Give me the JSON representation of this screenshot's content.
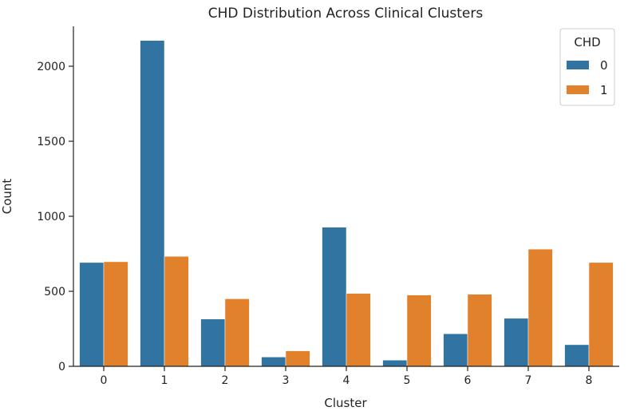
{
  "chart_data": {
    "type": "bar",
    "title": "CHD Distribution Across Clinical Clusters",
    "xlabel": "Cluster",
    "ylabel": "Count",
    "categories": [
      "0",
      "1",
      "2",
      "3",
      "4",
      "5",
      "6",
      "7",
      "8"
    ],
    "series": [
      {
        "name": "0",
        "color": "#3274a1",
        "values": [
          692,
          2172,
          315,
          62,
          927,
          41,
          217,
          320,
          144
        ]
      },
      {
        "name": "1",
        "color": "#e1812c",
        "values": [
          697,
          733,
          450,
          103,
          486,
          475,
          480,
          781,
          692
        ]
      }
    ],
    "ylim": [
      0,
      2280
    ],
    "yticks": [
      0,
      500,
      1000,
      1500,
      2000
    ],
    "legend": {
      "title": "CHD",
      "placement": "top-right"
    },
    "grid": false
  }
}
